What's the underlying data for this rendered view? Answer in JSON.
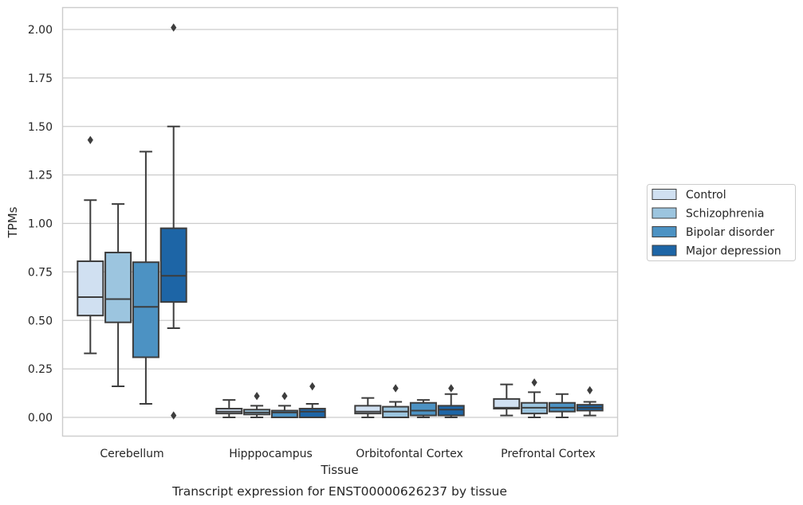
{
  "chart_data": {
    "type": "box",
    "title": "",
    "caption": "Transcript expression for ENST00000626237 by tissue",
    "xlabel": "Tissue",
    "ylabel": "TPMs",
    "ylim": [
      -0.1,
      2.11
    ],
    "yticks": [
      "0.00",
      "0.25",
      "0.50",
      "0.75",
      "1.00",
      "1.25",
      "1.50",
      "1.75",
      "2.00"
    ],
    "grid": "horizontal",
    "legend_position": "right, outside plot",
    "categories": [
      "Cerebellum",
      "Hipppocampus",
      "Orbitofontal Cortex",
      "Prefrontal Cortex"
    ],
    "series": [
      {
        "name": "Control",
        "color": "#d0e0f1",
        "boxes": [
          {
            "whisker_low": 0.33,
            "q1": 0.525,
            "median": 0.62,
            "q3": 0.805,
            "whisker_high": 1.12,
            "outliers": [
              1.43
            ]
          },
          {
            "whisker_low": 0.0,
            "q1": 0.02,
            "median": 0.03,
            "q3": 0.045,
            "whisker_high": 0.09,
            "outliers": []
          },
          {
            "whisker_low": 0.0,
            "q1": 0.02,
            "median": 0.03,
            "q3": 0.06,
            "whisker_high": 0.1,
            "outliers": []
          },
          {
            "whisker_low": 0.01,
            "q1": 0.045,
            "median": 0.05,
            "q3": 0.095,
            "whisker_high": 0.17,
            "outliers": []
          }
        ]
      },
      {
        "name": "Schizophrenia",
        "color": "#9cc5df",
        "boxes": [
          {
            "whisker_low": 0.16,
            "q1": 0.49,
            "median": 0.61,
            "q3": 0.85,
            "whisker_high": 1.1,
            "outliers": []
          },
          {
            "whisker_low": 0.0,
            "q1": 0.015,
            "median": 0.025,
            "q3": 0.04,
            "whisker_high": 0.06,
            "outliers": [
              0.11
            ]
          },
          {
            "whisker_low": 0.0,
            "q1": 0.0,
            "median": 0.03,
            "q3": 0.055,
            "whisker_high": 0.08,
            "outliers": [
              0.15
            ]
          },
          {
            "whisker_low": 0.0,
            "q1": 0.02,
            "median": 0.05,
            "q3": 0.075,
            "whisker_high": 0.13,
            "outliers": [
              0.18
            ]
          }
        ]
      },
      {
        "name": "Bipolar disorder",
        "color": "#4c92c3",
        "boxes": [
          {
            "whisker_low": 0.07,
            "q1": 0.31,
            "median": 0.57,
            "q3": 0.8,
            "whisker_high": 1.37,
            "outliers": []
          },
          {
            "whisker_low": 0.0,
            "q1": 0.0,
            "median": 0.025,
            "q3": 0.035,
            "whisker_high": 0.06,
            "outliers": [
              0.11
            ]
          },
          {
            "whisker_low": 0.0,
            "q1": 0.01,
            "median": 0.035,
            "q3": 0.075,
            "whisker_high": 0.09,
            "outliers": []
          },
          {
            "whisker_low": 0.0,
            "q1": 0.03,
            "median": 0.05,
            "q3": 0.075,
            "whisker_high": 0.12,
            "outliers": []
          }
        ]
      },
      {
        "name": "Major depression",
        "color": "#1d65a6",
        "boxes": [
          {
            "whisker_low": 0.46,
            "q1": 0.595,
            "median": 0.73,
            "q3": 0.975,
            "whisker_high": 1.5,
            "outliers": [
              0.01,
              2.01
            ]
          },
          {
            "whisker_low": 0.0,
            "q1": 0.0,
            "median": 0.03,
            "q3": 0.045,
            "whisker_high": 0.07,
            "outliers": [
              0.16
            ]
          },
          {
            "whisker_low": 0.0,
            "q1": 0.01,
            "median": 0.04,
            "q3": 0.06,
            "whisker_high": 0.12,
            "outliers": [
              0.15
            ]
          },
          {
            "whisker_low": 0.01,
            "q1": 0.035,
            "median": 0.05,
            "q3": 0.065,
            "whisker_high": 0.08,
            "outliers": [
              0.14
            ]
          }
        ]
      }
    ]
  }
}
